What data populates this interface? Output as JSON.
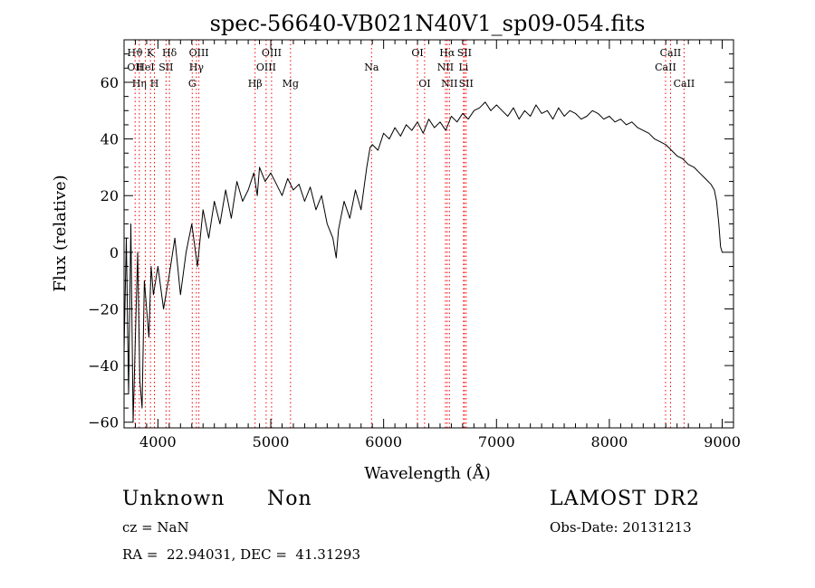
{
  "chart_data": {
    "type": "line",
    "title": "spec-56640-VB021N40V1_sp09-054.fits",
    "xlabel": "Wavelength (Å)",
    "ylabel": "Flux (relative)",
    "xlim": [
      3700,
      9100
    ],
    "ylim": [
      -62,
      75
    ],
    "xticks": [
      4000,
      5000,
      6000,
      7000,
      8000,
      9000
    ],
    "xtick_labels": [
      "4000",
      "5000",
      "6000",
      "7000",
      "8000",
      "9000"
    ],
    "yticks": [
      -60,
      -40,
      -20,
      0,
      20,
      40,
      60
    ],
    "ytick_labels": [
      "−60",
      "−40",
      "−20",
      "0",
      "20",
      "40",
      "60"
    ],
    "grid": false,
    "legend": "none",
    "series": [
      {
        "color": "#000000",
        "x": [
          3700,
          3720,
          3740,
          3760,
          3780,
          3800,
          3820,
          3840,
          3860,
          3880,
          3900,
          3920,
          3940,
          3960,
          3980,
          4000,
          4050,
          4100,
          4150,
          4200,
          4250,
          4300,
          4350,
          4400,
          4450,
          4500,
          4550,
          4600,
          4650,
          4700,
          4750,
          4800,
          4850,
          4880,
          4900,
          4950,
          5000,
          5050,
          5100,
          5150,
          5200,
          5250,
          5300,
          5350,
          5400,
          5450,
          5500,
          5550,
          5580,
          5600,
          5650,
          5700,
          5750,
          5800,
          5850,
          5880,
          5900,
          5950,
          6000,
          6050,
          6100,
          6150,
          6200,
          6250,
          6300,
          6350,
          6400,
          6450,
          6500,
          6550,
          6600,
          6650,
          6700,
          6750,
          6800,
          6850,
          6900,
          6950,
          7000,
          7050,
          7100,
          7150,
          7200,
          7250,
          7300,
          7350,
          7400,
          7450,
          7500,
          7550,
          7600,
          7650,
          7700,
          7750,
          7800,
          7850,
          7900,
          7950,
          8000,
          8050,
          8100,
          8150,
          8200,
          8250,
          8300,
          8350,
          8400,
          8450,
          8500,
          8550,
          8600,
          8650,
          8700,
          8750,
          8800,
          8850,
          8900,
          8930,
          8950,
          8970,
          8985,
          9000,
          9020
        ],
        "y": [
          -35,
          5,
          -50,
          10,
          -60,
          -30,
          0,
          -45,
          -55,
          -10,
          -20,
          -30,
          -5,
          -15,
          -10,
          -5,
          -20,
          -8,
          5,
          -15,
          0,
          10,
          -5,
          15,
          5,
          18,
          10,
          22,
          12,
          25,
          18,
          22,
          28,
          20,
          30,
          25,
          28,
          24,
          20,
          26,
          22,
          24,
          18,
          23,
          15,
          20,
          10,
          5,
          -2,
          8,
          18,
          12,
          22,
          15,
          30,
          37,
          38,
          36,
          42,
          40,
          44,
          41,
          45,
          43,
          46,
          42,
          47,
          44,
          46,
          43,
          48,
          46,
          49,
          47,
          50,
          51,
          53,
          50,
          52,
          50,
          48,
          51,
          47,
          50,
          48,
          52,
          49,
          50,
          47,
          51,
          48,
          50,
          49,
          47,
          48,
          50,
          49,
          47,
          48,
          46,
          47,
          45,
          46,
          44,
          43,
          42,
          40,
          39,
          38,
          36,
          34,
          33,
          31,
          30,
          28,
          26,
          24,
          22,
          18,
          10,
          2,
          0,
          0
        ]
      }
    ],
    "lines": [
      {
        "x": 3798,
        "color": "#ff0000",
        "labels": [
          {
            "text": "Hϑ",
            "row": 1
          },
          {
            "text": "OII",
            "row": 2
          }
        ]
      },
      {
        "x": 3835,
        "color": "#ff0000",
        "labels": [
          {
            "text": "Hη",
            "row": 3
          }
        ]
      },
      {
        "x": 3889,
        "color": "#ff0000",
        "labels": [
          {
            "text": "HeI",
            "row": 2
          }
        ]
      },
      {
        "x": 3934,
        "color": "#ff0000",
        "labels": [
          {
            "text": "K",
            "row": 1
          }
        ]
      },
      {
        "x": 3969,
        "color": "#ff0000",
        "labels": [
          {
            "text": "H",
            "row": 3
          }
        ]
      },
      {
        "x": 4072,
        "color": "#ff0000",
        "labels": [
          {
            "text": "SII",
            "row": 2
          }
        ]
      },
      {
        "x": 4102,
        "color": "#ff0000",
        "labels": [
          {
            "text": "Hδ",
            "row": 1
          }
        ]
      },
      {
        "x": 4304,
        "color": "#ff0000",
        "labels": [
          {
            "text": "G",
            "row": 3
          }
        ]
      },
      {
        "x": 4341,
        "color": "#ff0000",
        "labels": [
          {
            "text": "Hγ",
            "row": 2
          }
        ]
      },
      {
        "x": 4363,
        "color": "#ff0000",
        "labels": [
          {
            "text": "OIII",
            "row": 1
          }
        ]
      },
      {
        "x": 4861,
        "color": "#ff0000",
        "labels": [
          {
            "text": "Hβ",
            "row": 3
          }
        ]
      },
      {
        "x": 4959,
        "color": "#ff0000",
        "labels": [
          {
            "text": "OIII",
            "row": 2
          }
        ]
      },
      {
        "x": 5007,
        "color": "#ff0000",
        "labels": [
          {
            "text": "OIII",
            "row": 1
          }
        ]
      },
      {
        "x": 5175,
        "color": "#ff0000",
        "labels": [
          {
            "text": "Mg",
            "row": 3
          }
        ]
      },
      {
        "x": 5893,
        "color": "#ff0000",
        "labels": [
          {
            "text": "Na",
            "row": 2
          }
        ]
      },
      {
        "x": 6300,
        "color": "#ff0000",
        "labels": [
          {
            "text": "OI",
            "row": 1
          }
        ]
      },
      {
        "x": 6363,
        "color": "#ff0000",
        "labels": [
          {
            "text": "OI",
            "row": 3
          }
        ]
      },
      {
        "x": 6548,
        "color": "#ff0000",
        "labels": [
          {
            "text": "NII",
            "row": 2
          }
        ]
      },
      {
        "x": 6563,
        "color": "#ff0000",
        "labels": [
          {
            "text": "Hα",
            "row": 1
          }
        ]
      },
      {
        "x": 6583,
        "color": "#ff0000",
        "labels": [
          {
            "text": "NII",
            "row": 3
          }
        ]
      },
      {
        "x": 6708,
        "color": "#ff0000",
        "labels": [
          {
            "text": "Li",
            "row": 2
          }
        ]
      },
      {
        "x": 6716,
        "color": "#ff0000",
        "labels": [
          {
            "text": "SII",
            "row": 1
          }
        ]
      },
      {
        "x": 6731,
        "color": "#ff0000",
        "labels": [
          {
            "text": "SII",
            "row": 3
          }
        ]
      },
      {
        "x": 8498,
        "color": "#ff0000",
        "labels": [
          {
            "text": "CaII",
            "row": 2
          }
        ]
      },
      {
        "x": 8542,
        "color": "#ff0000",
        "labels": [
          {
            "text": "CaII",
            "row": 1
          }
        ]
      },
      {
        "x": 8662,
        "color": "#ff0000",
        "labels": [
          {
            "text": "CaII",
            "row": 3
          }
        ]
      }
    ]
  },
  "info": {
    "class": "Unknown",
    "subclass": "Non",
    "survey": "LAMOST DR2",
    "cz": "cz = NaN",
    "obs_date": "Obs-Date: 20131213",
    "coords": "RA =  22.94031, DEC =  41.31293"
  }
}
